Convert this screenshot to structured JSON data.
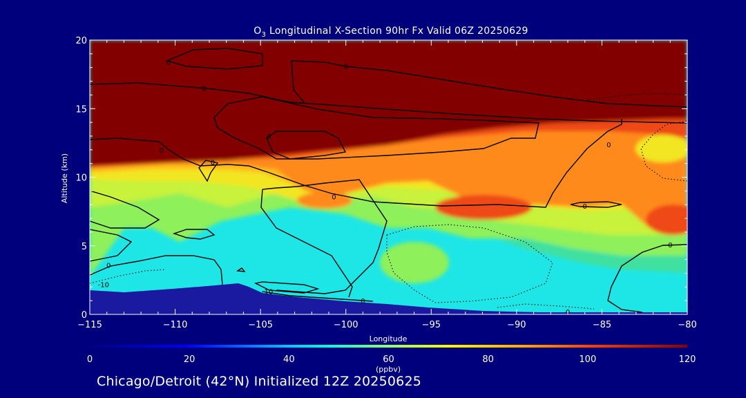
{
  "chart_data": {
    "type": "contour",
    "title": "O3 Longitudinal X-Section 90hr  Fx Valid 06Z 20250629",
    "title_parts": {
      "pre": "O",
      "sub": "3",
      "post": " Longitudinal X-Section 90hr  Fx Valid 06Z 20250629"
    },
    "xlabel": "Longitude",
    "ylabel": "Altitude (km)",
    "xlim": [
      -115,
      -80
    ],
    "ylim": [
      0,
      20
    ],
    "x_ticks": [
      -115,
      -110,
      -105,
      -100,
      -95,
      -90,
      -85,
      -80
    ],
    "x_tick_labels": [
      "−115",
      "−110",
      "−105",
      "−100",
      "−95",
      "−90",
      "−85",
      "−80"
    ],
    "y_ticks": [
      0,
      5,
      10,
      15,
      20
    ],
    "y_tick_labels": [
      "0",
      "5",
      "10",
      "15",
      "20"
    ],
    "colorbar": {
      "min": 0,
      "max": 120,
      "ticks": [
        0,
        20,
        40,
        60,
        80,
        100,
        120
      ],
      "tick_labels": [
        "0",
        "20",
        "40",
        "60",
        "80",
        "100",
        "120"
      ],
      "unit_label": "(ppbv)"
    },
    "fill_levels": [
      {
        "ppbv_min": 0,
        "ppbv_max": 20,
        "color": "#1a1aa0",
        "desc": "terrain / below ground"
      },
      {
        "ppbv_min": 40,
        "ppbv_max": 50,
        "color": "#1ee6e6"
      },
      {
        "ppbv_min": 50,
        "ppbv_max": 56,
        "color": "#40e0a0"
      },
      {
        "ppbv_min": 56,
        "ppbv_max": 62,
        "color": "#8ef05a"
      },
      {
        "ppbv_min": 62,
        "ppbv_max": 70,
        "color": "#c8f23a"
      },
      {
        "ppbv_min": 70,
        "ppbv_max": 78,
        "color": "#f2e620"
      },
      {
        "ppbv_min": 78,
        "ppbv_max": 86,
        "color": "#ffbe1e"
      },
      {
        "ppbv_min": 86,
        "ppbv_max": 96,
        "color": "#ff8a1c"
      },
      {
        "ppbv_min": 96,
        "ppbv_max": 106,
        "color": "#ee4a14"
      },
      {
        "ppbv_min": 106,
        "ppbv_max": 120,
        "color": "#820000"
      }
    ],
    "contour_labels": [
      {
        "lon": -110.4,
        "alt": 18.4,
        "text": "0"
      },
      {
        "lon": -100.0,
        "alt": 18.1,
        "text": "0"
      },
      {
        "lon": -108.3,
        "alt": 16.5,
        "text": "0"
      },
      {
        "lon": -104.5,
        "alt": 13.0,
        "text": "0"
      },
      {
        "lon": -110.8,
        "alt": 12.0,
        "text": "0"
      },
      {
        "lon": -107.8,
        "alt": 11.1,
        "text": "0"
      },
      {
        "lon": -84.6,
        "alt": 12.4,
        "text": "0"
      },
      {
        "lon": -100.7,
        "alt": 8.6,
        "text": "0"
      },
      {
        "lon": -86.0,
        "alt": 7.9,
        "text": "0"
      },
      {
        "lon": -81.0,
        "alt": 5.1,
        "text": "0"
      },
      {
        "lon": -113.9,
        "alt": 3.6,
        "text": "0"
      },
      {
        "lon": -114.2,
        "alt": 2.2,
        "text": "-10"
      },
      {
        "lon": -104.6,
        "alt": 1.7,
        "text": "-10"
      },
      {
        "lon": -99.0,
        "alt": 1.0,
        "text": "0"
      },
      {
        "lon": -87.0,
        "alt": 0.2,
        "text": "0"
      }
    ],
    "colors": {
      "background": "#00007d",
      "text": "#ffffff",
      "contour": "#000000"
    }
  },
  "footer": {
    "text": "Chicago/Detroit (42°N) Initialized 12Z 20250625"
  }
}
